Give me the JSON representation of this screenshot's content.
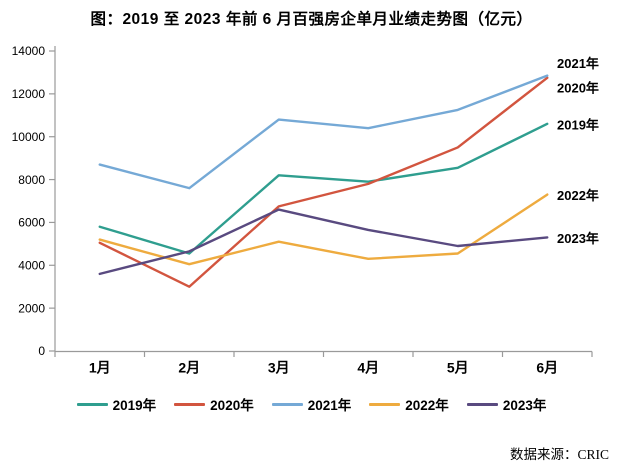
{
  "title": "图：2019 至 2023 年前 6 月百强房企单月业绩走势图（亿元）",
  "source": "数据来源：CRIC",
  "chart_data": {
    "type": "line",
    "title": "图：2019 至 2023 年前 6 月百强房企单月业绩走势图（亿元）",
    "unit": "亿元",
    "categories": [
      "1月",
      "2月",
      "3月",
      "4月",
      "5月",
      "6月"
    ],
    "series": [
      {
        "name": "2019年",
        "color": "#2F9E8F",
        "values": [
          5800,
          4550,
          8200,
          7900,
          8550,
          10600
        ],
        "label_dy": 1
      },
      {
        "name": "2020年",
        "color": "#D2553F",
        "values": [
          5050,
          3000,
          6750,
          7800,
          9500,
          12750
        ],
        "label_dy": 10
      },
      {
        "name": "2021年",
        "color": "#75A9D6",
        "values": [
          8700,
          7600,
          10800,
          10400,
          11250,
          12850
        ],
        "label_dy": -12
      },
      {
        "name": "2022年",
        "color": "#EEAB3F",
        "values": [
          5200,
          4050,
          5100,
          4300,
          4550,
          7300
        ],
        "label_dy": 1
      },
      {
        "name": "2023年",
        "color": "#594A80",
        "values": [
          3600,
          4650,
          6600,
          5650,
          4900,
          5300
        ],
        "label_dy": 1
      }
    ],
    "y_ticks": [
      0,
      2000,
      4000,
      6000,
      8000,
      10000,
      12000,
      14000
    ],
    "ylim": [
      0,
      14000
    ],
    "xlabel": "",
    "ylabel": "",
    "grid": false,
    "legend_position": "bottom",
    "axis_color": "#9a9a9a"
  }
}
